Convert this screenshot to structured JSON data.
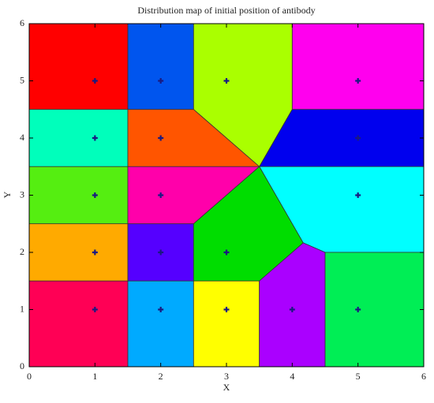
{
  "chart_data": {
    "type": "voronoi",
    "title": "Distribution map of initial position of antibody",
    "x_label": "X",
    "y_label": "Y",
    "x": [
      1,
      2,
      3,
      5,
      1,
      2,
      5,
      1,
      2,
      5,
      1,
      2,
      3,
      1,
      2,
      3,
      4,
      5
    ],
    "values": [
      5,
      5,
      5,
      5,
      4,
      4,
      4,
      3,
      3,
      3,
      2,
      2,
      2,
      1,
      1,
      1,
      1,
      1
    ],
    "region_colors": [
      "#ff0000",
      "#0055ee",
      "#aaff00",
      "#ff00ee",
      "#00ffbb",
      "#ff5500",
      "#0000ee",
      "#55ee11",
      "#ff00aa",
      "#00ffff",
      "#ffaa00",
      "#5500ff",
      "#00dd00",
      "#ff0055",
      "#00aaff",
      "#ffff00",
      "#aa00ff",
      "#00ee55"
    ],
    "point_color": "#1a1a80",
    "xlim": [
      0,
      6
    ],
    "ylim": [
      0,
      6
    ],
    "xticks": [
      0,
      1,
      2,
      3,
      4,
      5,
      6
    ],
    "yticks": [
      0,
      1,
      2,
      3,
      4,
      5,
      6
    ]
  }
}
